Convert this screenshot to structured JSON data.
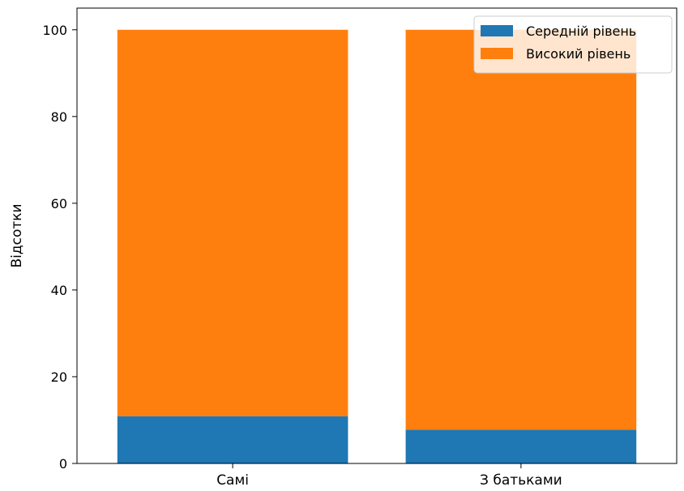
{
  "chart_data": {
    "type": "bar",
    "stacked": true,
    "categories": [
      "Самі",
      "З батьками"
    ],
    "series": [
      {
        "name": "Середній рівень",
        "values": [
          10.9,
          7.8
        ],
        "color": "#1f77b4"
      },
      {
        "name": "Високий рівень",
        "values": [
          89.1,
          92.2
        ],
        "color": "#ff7f0e"
      }
    ],
    "xlabel": "",
    "ylabel": "Відсотки",
    "ylim": [
      0,
      105
    ],
    "yticks": [
      0,
      20,
      40,
      60,
      80,
      100
    ],
    "grid": false,
    "legend_position": "top-right"
  }
}
